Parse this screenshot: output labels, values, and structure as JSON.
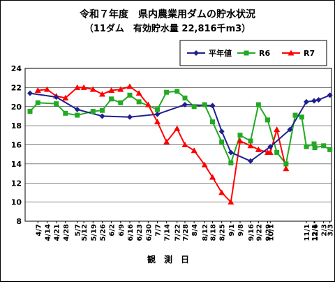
{
  "chart_data": {
    "type": "line",
    "title": "令和７年度　県内農業用ダムの貯水状況",
    "subtitle": "（11ダム　有効貯水量 22,816千m3）",
    "xlabel": "観　測　日",
    "ylabel": "",
    "ylim": [
      8,
      24
    ],
    "yticks": [
      8,
      10,
      12,
      14,
      16,
      18,
      20,
      22,
      24
    ],
    "grid": true,
    "legend_position": "top-right",
    "x_ticks": [
      "4/7",
      "4/14",
      "4/21",
      "4/28",
      "5/7",
      "5/12",
      "5/19",
      "5/26",
      "6/2",
      "6/9",
      "6/16",
      "6/23",
      "6/30",
      "7/7",
      "7/14",
      "7/22",
      "7/28",
      "8/4",
      "8/12",
      "8/18",
      "8/25",
      "9/1",
      "9/8",
      "9/16",
      "9/22",
      "9/29",
      "10/1",
      "11/1",
      "12/1",
      "12/6",
      "2/3",
      "3/3"
    ],
    "series": [
      {
        "name": "平年値",
        "color": "#1f1f8f",
        "marker": "diamond",
        "points": [
          {
            "x": "4/1",
            "y": 21.4
          },
          {
            "x": "4/21",
            "y": 21.0
          },
          {
            "x": "5/7",
            "y": 19.7
          },
          {
            "x": "5/26",
            "y": 19.0
          },
          {
            "x": "6/16",
            "y": 18.9
          },
          {
            "x": "7/7",
            "y": 19.2
          },
          {
            "x": "7/28",
            "y": 20.2
          },
          {
            "x": "8/18",
            "y": 20.1
          },
          {
            "x": "8/25",
            "y": 17.4
          },
          {
            "x": "9/1",
            "y": 15.2
          },
          {
            "x": "9/16",
            "y": 14.3
          },
          {
            "x": "10/1",
            "y": 15.8
          },
          {
            "x": "10/16",
            "y": 17.6
          },
          {
            "x": "11/1",
            "y": 20.5
          },
          {
            "x": "12/1",
            "y": 20.6
          },
          {
            "x": "1/1",
            "y": 20.7
          },
          {
            "x": "3/3",
            "y": 21.2
          }
        ]
      },
      {
        "name": "R6",
        "color": "#22aa22",
        "marker": "square",
        "points": [
          {
            "x": "4/1",
            "y": 19.5
          },
          {
            "x": "4/7",
            "y": 20.4
          },
          {
            "x": "4/21",
            "y": 20.3
          },
          {
            "x": "4/28",
            "y": 19.3
          },
          {
            "x": "5/7",
            "y": 19.1
          },
          {
            "x": "5/19",
            "y": 19.5
          },
          {
            "x": "5/26",
            "y": 19.6
          },
          {
            "x": "6/2",
            "y": 20.8
          },
          {
            "x": "6/9",
            "y": 20.4
          },
          {
            "x": "6/16",
            "y": 21.2
          },
          {
            "x": "6/23",
            "y": 20.5
          },
          {
            "x": "7/7",
            "y": 19.7
          },
          {
            "x": "7/14",
            "y": 21.5
          },
          {
            "x": "7/22",
            "y": 21.6
          },
          {
            "x": "7/28",
            "y": 20.9
          },
          {
            "x": "8/4",
            "y": 20.0
          },
          {
            "x": "8/12",
            "y": 20.2
          },
          {
            "x": "8/18",
            "y": 18.4
          },
          {
            "x": "8/25",
            "y": 16.3
          },
          {
            "x": "9/1",
            "y": 14.1
          },
          {
            "x": "9/8",
            "y": 17.0
          },
          {
            "x": "9/16",
            "y": 16.4
          },
          {
            "x": "9/22",
            "y": 20.2
          },
          {
            "x": "9/29",
            "y": 18.6
          },
          {
            "x": "10/6",
            "y": 15.2
          },
          {
            "x": "10/13",
            "y": 14.0
          },
          {
            "x": "10/20",
            "y": 19.1
          },
          {
            "x": "10/27",
            "y": 18.9
          },
          {
            "x": "11/1",
            "y": 15.8
          },
          {
            "x": "12/1",
            "y": 16.1
          },
          {
            "x": "12/6",
            "y": 15.7
          },
          {
            "x": "2/3",
            "y": 15.9
          },
          {
            "x": "3/3",
            "y": 15.5
          }
        ]
      },
      {
        "name": "R7",
        "color": "#ff0000",
        "marker": "triangle",
        "points": [
          {
            "x": "4/7",
            "y": 21.7
          },
          {
            "x": "4/14",
            "y": 21.8
          },
          {
            "x": "4/21",
            "y": 21.1
          },
          {
            "x": "4/28",
            "y": 20.9
          },
          {
            "x": "5/7",
            "y": 22.0
          },
          {
            "x": "5/12",
            "y": 22.0
          },
          {
            "x": "5/19",
            "y": 21.8
          },
          {
            "x": "5/26",
            "y": 21.3
          },
          {
            "x": "6/2",
            "y": 21.7
          },
          {
            "x": "6/9",
            "y": 21.8
          },
          {
            "x": "6/16",
            "y": 22.1
          },
          {
            "x": "6/23",
            "y": 21.4
          },
          {
            "x": "6/30",
            "y": 20.2
          },
          {
            "x": "7/7",
            "y": 18.4
          },
          {
            "x": "7/14",
            "y": 16.3
          },
          {
            "x": "7/22",
            "y": 17.7
          },
          {
            "x": "7/28",
            "y": 16.0
          },
          {
            "x": "8/4",
            "y": 15.4
          },
          {
            "x": "8/12",
            "y": 13.9
          },
          {
            "x": "8/18",
            "y": 12.6
          },
          {
            "x": "8/25",
            "y": 11.0
          },
          {
            "x": "9/1",
            "y": 10.0
          },
          {
            "x": "9/8",
            "y": 16.4
          },
          {
            "x": "9/16",
            "y": 15.9
          },
          {
            "x": "9/22",
            "y": 15.5
          },
          {
            "x": "9/29",
            "y": 15.2
          },
          {
            "x": "10/1",
            "y": 15.2
          },
          {
            "x": "10/6",
            "y": 17.6
          },
          {
            "x": "10/13",
            "y": 13.5
          }
        ]
      }
    ]
  }
}
